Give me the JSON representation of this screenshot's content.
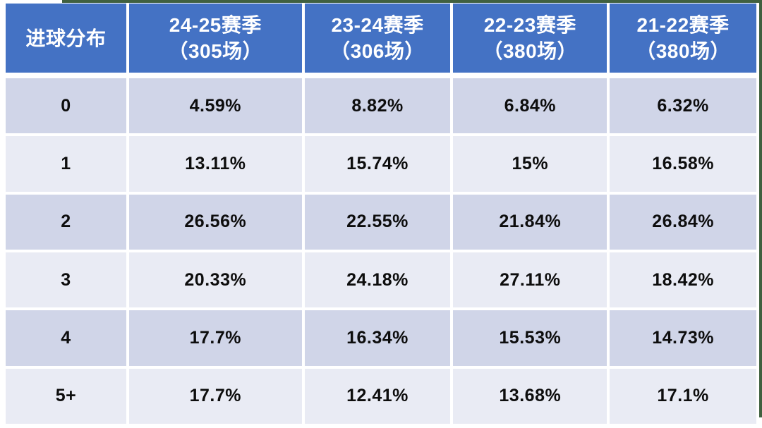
{
  "colors": {
    "header_bg": "#4472c4",
    "header_text": "#ffffff",
    "band_dark": "#d0d5e8",
    "band_light": "#e9ebf4",
    "cell_text": "#0d0d0d",
    "grid_gap": "#ffffff",
    "edge_artifact": "#40603f"
  },
  "table": {
    "corner_label": "进球分布",
    "seasons": [
      {
        "name": "24-25赛季",
        "matches": "（305场）"
      },
      {
        "name": "23-24赛季",
        "matches": "（306场）"
      },
      {
        "name": "22-23赛季",
        "matches": "（380场）"
      },
      {
        "name": "21-22赛季",
        "matches": "（380场）"
      }
    ],
    "rows": [
      {
        "goals": "0",
        "values": [
          "4.59%",
          "8.82%",
          "6.84%",
          "6.32%"
        ]
      },
      {
        "goals": "1",
        "values": [
          "13.11%",
          "15.74%",
          "15%",
          "16.58%"
        ]
      },
      {
        "goals": "2",
        "values": [
          "26.56%",
          "22.55%",
          "21.84%",
          "26.84%"
        ]
      },
      {
        "goals": "3",
        "values": [
          "20.33%",
          "24.18%",
          "27.11%",
          "18.42%"
        ]
      },
      {
        "goals": "4",
        "values": [
          "17.7%",
          "16.34%",
          "15.53%",
          "14.73%"
        ]
      },
      {
        "goals": "5+",
        "values": [
          "17.7%",
          "12.41%",
          "13.68%",
          "17.1%"
        ]
      }
    ]
  },
  "chart_data": {
    "type": "table",
    "title": "进球分布",
    "categories": [
      "0",
      "1",
      "2",
      "3",
      "4",
      "5+"
    ],
    "series": [
      {
        "name": "24-25赛季（305场）",
        "values": [
          4.59,
          13.11,
          26.56,
          20.33,
          17.7,
          17.7
        ]
      },
      {
        "name": "23-24赛季（306场）",
        "values": [
          8.82,
          15.74,
          22.55,
          24.18,
          16.34,
          12.41
        ]
      },
      {
        "name": "22-23赛季（380场）",
        "values": [
          6.84,
          15.0,
          21.84,
          27.11,
          15.53,
          13.68
        ]
      },
      {
        "name": "21-22赛季（380场）",
        "values": [
          6.32,
          16.58,
          26.84,
          18.42,
          14.73,
          17.1
        ]
      }
    ],
    "value_unit": "%",
    "row_header_label": "进球分布",
    "layout": "header row blue, alternating lavender bands (dark first), white cell gaps, all text bold centered"
  }
}
